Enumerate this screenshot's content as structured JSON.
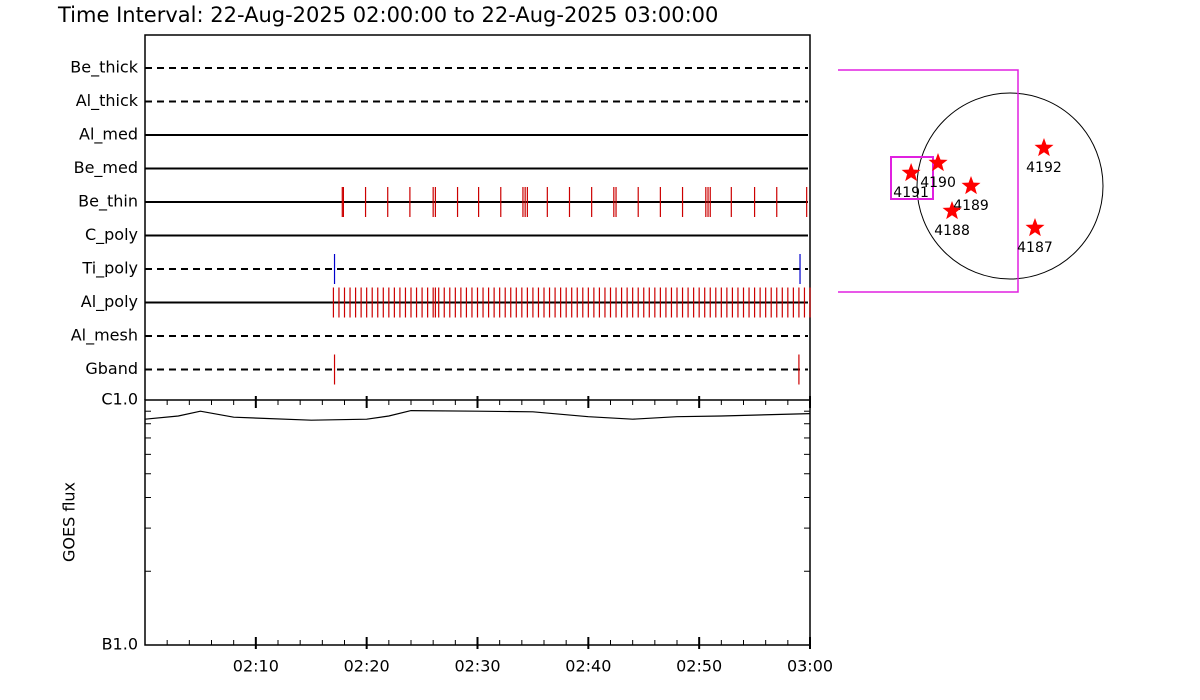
{
  "title": "Time Interval: 22-Aug-2025 02:00:00 to 22-Aug-2025 03:00:00",
  "chart_data": [
    {
      "type": "event",
      "xlim": [
        0,
        60
      ],
      "series": [
        {
          "name": "Be_thick",
          "dashed": true,
          "color": "#cc0000",
          "values": []
        },
        {
          "name": "Al_thick",
          "dashed": true,
          "color": "#cc0000",
          "values": []
        },
        {
          "name": "Al_med",
          "dashed": false,
          "color": "#cc0000",
          "values": []
        },
        {
          "name": "Be_med",
          "dashed": false,
          "color": "#cc0000",
          "values": []
        },
        {
          "name": "Be_thin",
          "dashed": false,
          "color": "#cc0000",
          "values": [
            17.8,
            17.9,
            19.9,
            21.9,
            23.9,
            26.0,
            26.2,
            28.2,
            30.1,
            32.1,
            34.1,
            34.3,
            34.5,
            36.3,
            38.3,
            40.3,
            42.3,
            42.5,
            44.5,
            46.5,
            48.5,
            50.6,
            50.8,
            51.0,
            52.9,
            55.0,
            57.0,
            59.7
          ]
        },
        {
          "name": "C_poly",
          "dashed": false,
          "color": "#cc0000",
          "values": []
        },
        {
          "name": "Ti_poly",
          "dashed": true,
          "color": "#0000cc",
          "values": [
            17.1,
            59.1
          ]
        },
        {
          "name": "Al_poly",
          "dashed": false,
          "color": "#cc0000",
          "values": [
            17.0,
            17.5,
            18.0,
            18.5,
            19.0,
            19.5,
            20.0,
            20.5,
            21.0,
            21.5,
            22.0,
            22.5,
            23.0,
            23.5,
            24.0,
            24.5,
            25.0,
            25.5,
            26.0,
            26.2,
            26.5,
            27.0,
            27.5,
            28.0,
            28.5,
            29.0,
            29.5,
            30.0,
            30.5,
            31.0,
            31.5,
            32.0,
            32.5,
            33.0,
            33.5,
            34.0,
            34.5,
            35.0,
            35.5,
            36.0,
            36.5,
            37.0,
            37.5,
            38.0,
            38.5,
            39.0,
            39.5,
            40.0,
            40.5,
            41.0,
            41.5,
            42.0,
            42.5,
            43.0,
            43.5,
            44.0,
            44.5,
            45.0,
            45.5,
            46.0,
            46.5,
            47.0,
            47.5,
            48.0,
            48.5,
            49.0,
            49.5,
            50.0,
            50.5,
            51.0,
            51.5,
            52.0,
            52.5,
            53.0,
            53.5,
            54.0,
            54.5,
            55.0,
            55.5,
            56.0,
            56.5,
            57.0,
            57.5,
            58.0,
            58.5,
            59.0,
            59.5,
            60.0
          ]
        },
        {
          "name": "Al_mesh",
          "dashed": true,
          "color": "#cc0000",
          "values": []
        },
        {
          "name": "Gband",
          "dashed": true,
          "color": "#cc0000",
          "values": [
            17.1,
            59.0
          ]
        }
      ]
    },
    {
      "type": "line",
      "ylabel": "GOES flux",
      "log_y": true,
      "color": "#000000",
      "x": [
        0,
        3,
        5,
        8,
        15,
        20,
        22,
        24,
        30,
        35,
        40,
        44,
        48,
        52,
        60
      ],
      "values": [
        8.35e-07,
        8.6e-07,
        9e-07,
        8.51e-07,
        8.27e-07,
        8.35e-07,
        8.6e-07,
        9.05e-07,
        9e-07,
        8.95e-07,
        8.55e-07,
        8.35e-07,
        8.55e-07,
        8.6e-07,
        8.8e-07
      ],
      "xlim": [
        0,
        60
      ],
      "xticks": [
        {
          "value": 10,
          "label": "02:10"
        },
        {
          "value": 20,
          "label": "02:20"
        },
        {
          "value": 30,
          "label": "02:30"
        },
        {
          "value": 40,
          "label": "02:40"
        },
        {
          "value": 50,
          "label": "02:50"
        },
        {
          "value": 60,
          "label": "03:00"
        }
      ],
      "ylim": [
        1e-07,
        1e-06
      ],
      "yticks": [
        {
          "value": 1e-07,
          "label": "B1.0"
        },
        {
          "value": 1e-06,
          "label": "C1.0"
        }
      ]
    },
    {
      "type": "scatter",
      "color": "#ff0000",
      "categories": [
        "4192",
        "4190",
        "4191",
        "4189",
        "4188",
        "4187"
      ],
      "x": [
        347,
        -735,
        -1010,
        -398,
        -592,
        255
      ],
      "values": [
        388,
        235,
        133,
        0,
        -255,
        -429
      ],
      "xlim": [
        -950,
        950
      ],
      "ylim": [
        -950,
        950
      ]
    }
  ]
}
